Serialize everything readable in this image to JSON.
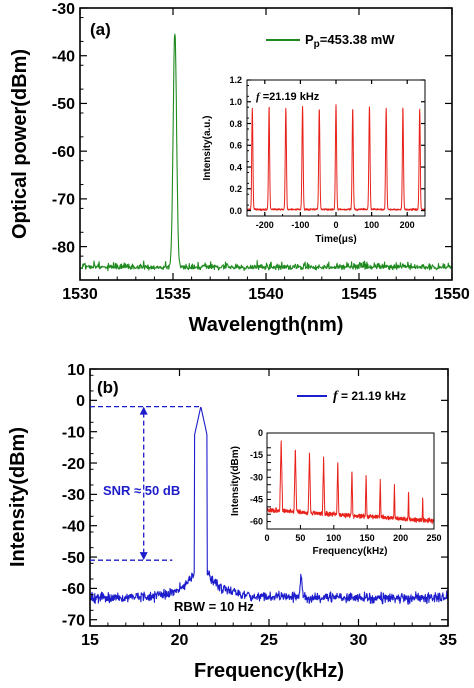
{
  "chart_data": [
    {
      "panel": "(a)",
      "type": "line",
      "xlabel": "Wavelength(nm)",
      "ylabel": "Optical power(dBm)",
      "xlim": [
        1530,
        1550
      ],
      "ylim": [
        -87,
        -30
      ],
      "xticks": [
        "1530",
        "1535",
        "1540",
        "1545",
        "1550"
      ],
      "yticks": [
        "-30",
        "-40",
        "-50",
        "-60",
        "-70",
        "-80"
      ],
      "legend": "top-right",
      "series": [
        {
          "name": "Pp=453.38 mW",
          "name_main": "P",
          "name_sub": "p",
          "name_rest": "=453.38 mW",
          "color": "#1f8a1f",
          "noise_floor": -84.5,
          "peak_x": 1535.1,
          "peak_y": -35.5
        }
      ],
      "inset": {
        "type": "line",
        "annotation_italic": "f",
        "annotation_rest": " =21.19 kHz",
        "xlabel": "Time(μs)",
        "ylabel": "Intensity(a.u.)",
        "xlim": [
          -250,
          250
        ],
        "ylim": [
          -0.05,
          1.2
        ],
        "xticks": [
          "-200",
          "-100",
          "0",
          "100",
          "200"
        ],
        "yticks": [
          "0.0",
          "0.2",
          "0.4",
          "0.6",
          "0.8",
          "1.0",
          "1.2"
        ],
        "color": "#e8221b",
        "pulse_times": [
          -235,
          -188,
          -141,
          -94,
          -47,
          0,
          47,
          94,
          141,
          188,
          235
        ],
        "pulse_heights": [
          0.93,
          0.95,
          0.93,
          0.95,
          0.93,
          0.96,
          0.93,
          0.95,
          0.93,
          0.94,
          0.92
        ]
      }
    },
    {
      "panel": "(b)",
      "type": "line",
      "xlabel": "Frequency(kHz)",
      "ylabel": "Intensity(dBm)",
      "xlim": [
        15,
        35
      ],
      "ylim": [
        -72,
        10
      ],
      "xticks": [
        "15",
        "20",
        "25",
        "30",
        "35"
      ],
      "yticks": [
        "10",
        "0",
        "-10",
        "-20",
        "-30",
        "-40",
        "-50",
        "-60",
        "-70"
      ],
      "legend": "top-right",
      "series": [
        {
          "name": "f = 21.19 kHz",
          "name_italic": "f",
          "name_rest": " = 21.19 kHz",
          "color": "#1d1dcc",
          "noise_floor": -63,
          "peak_x": 21.19,
          "peak_y": -2
        }
      ],
      "annotations": {
        "snr": "SNR ≈ 50 dB",
        "rbw": "RBW = 10 Hz",
        "snr_top": -2,
        "snr_bottom": -51
      },
      "inset": {
        "type": "line",
        "xlabel": "Frequency(kHz)",
        "ylabel": "Intensity(dBm)",
        "xlim": [
          0,
          250
        ],
        "ylim": [
          -65,
          0
        ],
        "xticks": [
          "0",
          "50",
          "100",
          "150",
          "200",
          "250"
        ],
        "yticks": [
          "0",
          "-15",
          "-30",
          "-45",
          "-60"
        ],
        "yticks_all": [
          0,
          -10,
          -15,
          -20,
          -25,
          -30,
          -35,
          -40,
          -45,
          -50,
          -55,
          -60
        ],
        "color": "#e8221b",
        "harmonics": [
          21.19,
          42.38,
          63.57,
          84.76,
          105.95,
          127.14,
          148.33,
          169.52,
          190.71,
          211.9,
          233.09
        ],
        "harmonic_peaks": [
          -4,
          -9,
          -12,
          -16,
          -19,
          -24,
          -27,
          -31,
          -34,
          -38,
          -42
        ]
      }
    }
  ]
}
